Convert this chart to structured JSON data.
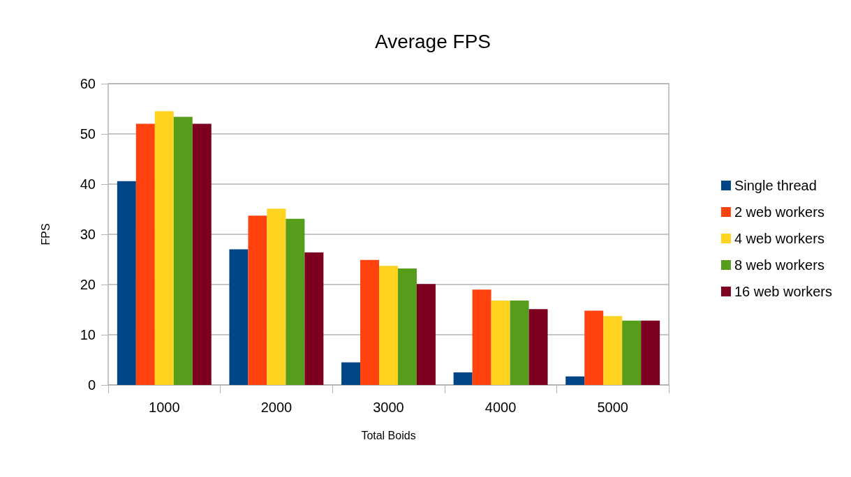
{
  "chart_data": {
    "type": "bar",
    "title": "Average FPS",
    "xlabel": "Total Boids",
    "ylabel": "FPS",
    "categories": [
      "1000",
      "2000",
      "3000",
      "4000",
      "5000"
    ],
    "series": [
      {
        "name": "Single thread",
        "color": "#004586",
        "values": [
          40.6,
          27.0,
          4.5,
          2.5,
          1.7
        ]
      },
      {
        "name": "2 web workers",
        "color": "#ff420e",
        "values": [
          52.0,
          33.7,
          24.9,
          19.0,
          14.8
        ]
      },
      {
        "name": "4 web workers",
        "color": "#ffd320",
        "values": [
          54.5,
          35.1,
          23.7,
          16.8,
          13.7
        ]
      },
      {
        "name": "8 web workers",
        "color": "#579d1c",
        "values": [
          53.4,
          33.1,
          23.2,
          16.8,
          12.8
        ]
      },
      {
        "name": "16 web workers",
        "color": "#7e0021",
        "values": [
          52.0,
          26.4,
          20.1,
          15.1,
          12.8
        ]
      }
    ],
    "ylim": [
      0,
      60
    ],
    "yticks": [
      0,
      10,
      20,
      30,
      40,
      50,
      60
    ],
    "grid": "y",
    "legend": "right"
  }
}
